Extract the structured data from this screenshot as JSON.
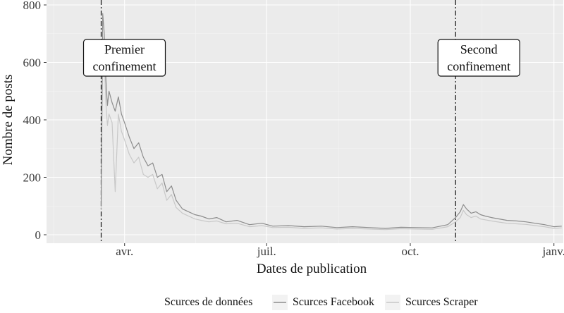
{
  "chart_data": {
    "type": "line",
    "xlabel": "Dates de publication",
    "ylabel": "Nombre de posts",
    "ylim": [
      0,
      800
    ],
    "yticks": [
      0,
      200,
      400,
      600,
      800
    ],
    "xlim": [
      "2020-02-11",
      "2021-01-07"
    ],
    "xticks": [
      {
        "date": "2020-04-01",
        "label": "avr."
      },
      {
        "date": "2020-07-01",
        "label": "juil."
      },
      {
        "date": "2020-10-01",
        "label": "oct."
      },
      {
        "date": "2021-01-01",
        "label": "janv."
      }
    ],
    "grid": true,
    "legend": {
      "title": "Scurces de données",
      "position": "bottom",
      "items": [
        "Scurces Facebook",
        "Scurces Scraper"
      ]
    },
    "annotations": [
      {
        "date": "2020-03-17",
        "label_lines": [
          "Premier",
          "confinement"
        ]
      },
      {
        "date": "2020-10-30",
        "label_lines": [
          "Second",
          "confinement"
        ]
      }
    ],
    "series": [
      {
        "name": "Scurces Facebook",
        "color": "#8c8c8c",
        "points": [
          [
            "2020-03-17",
            100
          ],
          [
            "2020-03-18",
            770
          ],
          [
            "2020-03-19",
            700
          ],
          [
            "2020-03-20",
            540
          ],
          [
            "2020-03-21",
            450
          ],
          [
            "2020-03-22",
            500
          ],
          [
            "2020-03-24",
            460
          ],
          [
            "2020-03-26",
            430
          ],
          [
            "2020-03-28",
            480
          ],
          [
            "2020-03-30",
            420
          ],
          [
            "2020-04-01",
            390
          ],
          [
            "2020-04-04",
            340
          ],
          [
            "2020-04-07",
            300
          ],
          [
            "2020-04-10",
            320
          ],
          [
            "2020-04-13",
            270
          ],
          [
            "2020-04-16",
            240
          ],
          [
            "2020-04-19",
            250
          ],
          [
            "2020-04-22",
            200
          ],
          [
            "2020-04-25",
            210
          ],
          [
            "2020-04-28",
            150
          ],
          [
            "2020-05-01",
            170
          ],
          [
            "2020-05-04",
            120
          ],
          [
            "2020-05-08",
            90
          ],
          [
            "2020-05-12",
            80
          ],
          [
            "2020-05-16",
            70
          ],
          [
            "2020-05-20",
            65
          ],
          [
            "2020-05-25",
            55
          ],
          [
            "2020-05-30",
            60
          ],
          [
            "2020-06-05",
            45
          ],
          [
            "2020-06-12",
            50
          ],
          [
            "2020-06-20",
            35
          ],
          [
            "2020-06-28",
            40
          ],
          [
            "2020-07-05",
            30
          ],
          [
            "2020-07-15",
            32
          ],
          [
            "2020-07-25",
            28
          ],
          [
            "2020-08-05",
            30
          ],
          [
            "2020-08-15",
            25
          ],
          [
            "2020-08-25",
            28
          ],
          [
            "2020-09-05",
            25
          ],
          [
            "2020-09-15",
            22
          ],
          [
            "2020-09-25",
            26
          ],
          [
            "2020-10-05",
            25
          ],
          [
            "2020-10-15",
            24
          ],
          [
            "2020-10-25",
            35
          ],
          [
            "2020-10-30",
            60
          ],
          [
            "2020-11-02",
            80
          ],
          [
            "2020-11-04",
            105
          ],
          [
            "2020-11-06",
            90
          ],
          [
            "2020-11-09",
            75
          ],
          [
            "2020-11-12",
            80
          ],
          [
            "2020-11-15",
            70
          ],
          [
            "2020-11-18",
            65
          ],
          [
            "2020-11-22",
            60
          ],
          [
            "2020-11-27",
            55
          ],
          [
            "2020-12-02",
            50
          ],
          [
            "2020-12-08",
            48
          ],
          [
            "2020-12-14",
            45
          ],
          [
            "2020-12-20",
            40
          ],
          [
            "2020-12-26",
            35
          ],
          [
            "2021-01-01",
            28
          ],
          [
            "2021-01-06",
            30
          ]
        ]
      },
      {
        "name": "Scurces Scraper",
        "color": "#c8c8c8",
        "points": [
          [
            "2020-03-17",
            90
          ],
          [
            "2020-03-18",
            690
          ],
          [
            "2020-03-19",
            620
          ],
          [
            "2020-03-20",
            460
          ],
          [
            "2020-03-21",
            380
          ],
          [
            "2020-03-22",
            420
          ],
          [
            "2020-03-24",
            390
          ],
          [
            "2020-03-26",
            150
          ],
          [
            "2020-03-28",
            420
          ],
          [
            "2020-03-30",
            360
          ],
          [
            "2020-04-01",
            330
          ],
          [
            "2020-04-04",
            280
          ],
          [
            "2020-04-07",
            250
          ],
          [
            "2020-04-10",
            270
          ],
          [
            "2020-04-13",
            210
          ],
          [
            "2020-04-16",
            200
          ],
          [
            "2020-04-19",
            210
          ],
          [
            "2020-04-22",
            160
          ],
          [
            "2020-04-25",
            180
          ],
          [
            "2020-04-28",
            120
          ],
          [
            "2020-05-01",
            140
          ],
          [
            "2020-05-04",
            95
          ],
          [
            "2020-05-08",
            75
          ],
          [
            "2020-05-12",
            65
          ],
          [
            "2020-05-16",
            55
          ],
          [
            "2020-05-20",
            50
          ],
          [
            "2020-05-25",
            45
          ],
          [
            "2020-05-30",
            48
          ],
          [
            "2020-06-05",
            38
          ],
          [
            "2020-06-12",
            40
          ],
          [
            "2020-06-20",
            28
          ],
          [
            "2020-06-28",
            32
          ],
          [
            "2020-07-05",
            25
          ],
          [
            "2020-07-15",
            26
          ],
          [
            "2020-07-25",
            22
          ],
          [
            "2020-08-05",
            24
          ],
          [
            "2020-08-15",
            20
          ],
          [
            "2020-08-25",
            22
          ],
          [
            "2020-09-05",
            20
          ],
          [
            "2020-09-15",
            18
          ],
          [
            "2020-09-25",
            21
          ],
          [
            "2020-10-05",
            20
          ],
          [
            "2020-10-15",
            19
          ],
          [
            "2020-10-25",
            28
          ],
          [
            "2020-10-30",
            45
          ],
          [
            "2020-11-02",
            60
          ],
          [
            "2020-11-04",
            85
          ],
          [
            "2020-11-06",
            70
          ],
          [
            "2020-11-09",
            60
          ],
          [
            "2020-11-12",
            65
          ],
          [
            "2020-11-15",
            55
          ],
          [
            "2020-11-18",
            52
          ],
          [
            "2020-11-22",
            48
          ],
          [
            "2020-11-27",
            44
          ],
          [
            "2020-12-02",
            40
          ],
          [
            "2020-12-08",
            38
          ],
          [
            "2020-12-14",
            36
          ],
          [
            "2020-12-20",
            32
          ],
          [
            "2020-12-26",
            28
          ],
          [
            "2021-01-01",
            22
          ],
          [
            "2021-01-06",
            24
          ]
        ]
      }
    ]
  }
}
